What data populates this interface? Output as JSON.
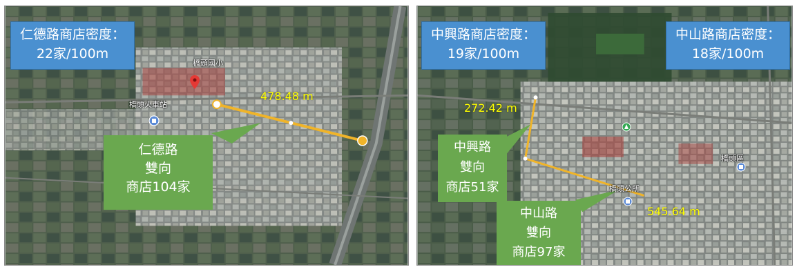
{
  "left_panel": {
    "density_box": {
      "line1": "仁德路商店密度：",
      "line2": "22家/100m"
    },
    "road_box": {
      "line1": "仁德路",
      "line2": "雙向",
      "line3": "商店104家"
    },
    "distance": "478.48 m",
    "place_labels": [
      "橋頭國小",
      "橋頭火車站"
    ]
  },
  "right_panel": {
    "density_box_left": {
      "line1": "中興路商店密度：",
      "line2": "19家/100m"
    },
    "density_box_right": {
      "line1": "中山路商店密度：",
      "line2": "18家/100m"
    },
    "road_box_top": {
      "line1": "中興路",
      "line2": "雙向",
      "line3": "商店51家"
    },
    "road_box_bottom": {
      "line1": "中山路",
      "line2": "雙向",
      "line3": "商店97家"
    },
    "distance_top": "272.42 m",
    "distance_bottom": "545.64 m",
    "place_labels": [
      "橋頭區",
      "橋頭公所"
    ]
  },
  "colors": {
    "density_box": "#4a90d0",
    "road_box": "#6aa84f",
    "route_line": "#f0b429",
    "distance_text": "#ffff00",
    "pin": "#e53935"
  },
  "icons": [
    "location-pin-icon",
    "map-poi-icon"
  ]
}
